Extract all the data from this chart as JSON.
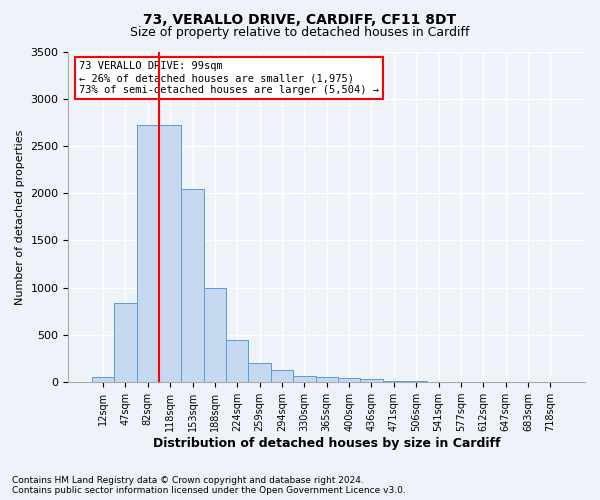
{
  "title1": "73, VERALLO DRIVE, CARDIFF, CF11 8DT",
  "title2": "Size of property relative to detached houses in Cardiff",
  "xlabel": "Distribution of detached houses by size in Cardiff",
  "ylabel": "Number of detached properties",
  "categories": [
    "12sqm",
    "47sqm",
    "82sqm",
    "118sqm",
    "153sqm",
    "188sqm",
    "224sqm",
    "259sqm",
    "294sqm",
    "330sqm",
    "365sqm",
    "400sqm",
    "436sqm",
    "471sqm",
    "506sqm",
    "541sqm",
    "577sqm",
    "612sqm",
    "647sqm",
    "683sqm",
    "718sqm"
  ],
  "values": [
    55,
    840,
    2720,
    2720,
    2050,
    1000,
    450,
    205,
    130,
    70,
    55,
    45,
    30,
    15,
    10,
    5,
    3,
    2,
    1,
    1,
    1
  ],
  "bar_color": "#c5d8f0",
  "bar_edge_color": "#5b9bd5",
  "vline_x_index": 2,
  "vline_color": "red",
  "annotation_text": "73 VERALLO DRIVE: 99sqm\n← 26% of detached houses are smaller (1,975)\n73% of semi-detached houses are larger (5,504) →",
  "annotation_box_color": "white",
  "annotation_box_edge_color": "red",
  "ylim": [
    0,
    3500
  ],
  "yticks": [
    0,
    500,
    1000,
    1500,
    2000,
    2500,
    3000,
    3500
  ],
  "footnote": "Contains HM Land Registry data © Crown copyright and database right 2024.\nContains public sector information licensed under the Open Government Licence v3.0.",
  "bg_color": "#eef2f9",
  "grid_color": "white"
}
